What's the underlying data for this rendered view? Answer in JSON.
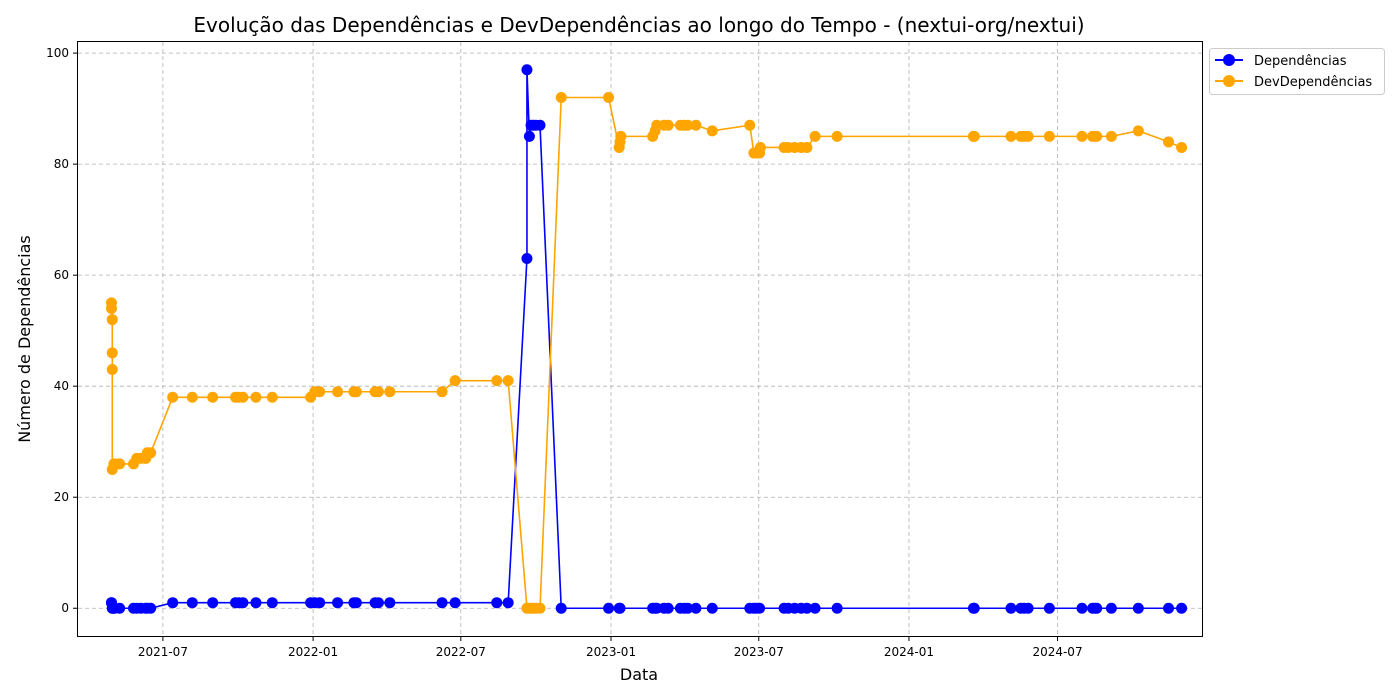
{
  "chart_data": {
    "type": "line",
    "title": "Evolução das Dependências e DevDependências ao longo do Tempo - (nextui-org/nextui)",
    "xlabel": "Data",
    "ylabel": "Número de Dependências",
    "xlim": [
      "2021-03-19",
      "2024-12-25"
    ],
    "ylim": [
      -5,
      102
    ],
    "xticks": [
      {
        "date": "2021-07-01",
        "label": "2021-07"
      },
      {
        "date": "2022-01-01",
        "label": "2022-01"
      },
      {
        "date": "2022-07-01",
        "label": "2022-07"
      },
      {
        "date": "2023-01-01",
        "label": "2023-01"
      },
      {
        "date": "2023-07-01",
        "label": "2023-07"
      },
      {
        "date": "2024-01-01",
        "label": "2024-01"
      },
      {
        "date": "2024-07-01",
        "label": "2024-07"
      }
    ],
    "yticks": [
      0,
      20,
      40,
      60,
      80,
      100
    ],
    "grid": true,
    "legend_position": "outside-top-right",
    "series": [
      {
        "name": "Dependências",
        "color": "#0000ff",
        "marker": "circle",
        "points": [
          [
            "2021-04-29",
            1
          ],
          [
            "2021-04-29",
            1
          ],
          [
            "2021-04-30",
            0
          ],
          [
            "2021-04-30",
            0
          ],
          [
            "2021-05-02",
            0
          ],
          [
            "2021-05-03",
            0
          ],
          [
            "2021-05-09",
            0
          ],
          [
            "2021-05-26",
            0
          ],
          [
            "2021-05-30",
            0
          ],
          [
            "2021-06-04",
            0
          ],
          [
            "2021-06-10",
            0
          ],
          [
            "2021-06-12",
            0
          ],
          [
            "2021-06-16",
            0
          ],
          [
            "2021-07-13",
            1
          ],
          [
            "2021-08-06",
            1
          ],
          [
            "2021-08-31",
            1
          ],
          [
            "2021-09-28",
            1
          ],
          [
            "2021-10-02",
            1
          ],
          [
            "2021-10-07",
            1
          ],
          [
            "2021-10-23",
            1
          ],
          [
            "2021-11-12",
            1
          ],
          [
            "2021-12-29",
            1
          ],
          [
            "2022-01-03",
            1
          ],
          [
            "2022-01-09",
            1
          ],
          [
            "2022-01-31",
            1
          ],
          [
            "2022-02-20",
            1
          ],
          [
            "2022-02-23",
            1
          ],
          [
            "2022-03-18",
            1
          ],
          [
            "2022-03-22",
            1
          ],
          [
            "2022-04-05",
            1
          ],
          [
            "2022-06-08",
            1
          ],
          [
            "2022-06-24",
            1
          ],
          [
            "2022-08-14",
            1
          ],
          [
            "2022-08-28",
            1
          ],
          [
            "2022-09-20",
            63
          ],
          [
            "2022-09-20",
            97
          ],
          [
            "2022-09-23",
            85
          ],
          [
            "2022-09-25",
            87
          ],
          [
            "2022-09-28",
            87
          ],
          [
            "2022-10-01",
            87
          ],
          [
            "2022-10-06",
            87
          ],
          [
            "2022-11-01",
            0
          ],
          [
            "2022-12-29",
            0
          ],
          [
            "2023-01-11",
            0
          ],
          [
            "2023-01-12",
            0
          ],
          [
            "2023-02-21",
            0
          ],
          [
            "2023-02-24",
            0
          ],
          [
            "2023-02-26",
            0
          ],
          [
            "2023-03-07",
            0
          ],
          [
            "2023-03-12",
            0
          ],
          [
            "2023-03-27",
            0
          ],
          [
            "2023-04-01",
            0
          ],
          [
            "2023-04-05",
            0
          ],
          [
            "2023-04-15",
            0
          ],
          [
            "2023-05-05",
            0
          ],
          [
            "2023-06-20",
            0
          ],
          [
            "2023-06-25",
            0
          ],
          [
            "2023-06-28",
            0
          ],
          [
            "2023-07-02",
            0
          ],
          [
            "2023-08-01",
            0
          ],
          [
            "2023-08-06",
            0
          ],
          [
            "2023-08-14",
            0
          ],
          [
            "2023-08-22",
            0
          ],
          [
            "2023-08-29",
            0
          ],
          [
            "2023-09-08",
            0
          ],
          [
            "2023-10-05",
            0
          ],
          [
            "2024-03-20",
            0
          ],
          [
            "2024-03-21",
            0
          ],
          [
            "2024-05-05",
            0
          ],
          [
            "2024-05-17",
            0
          ],
          [
            "2024-05-21",
            0
          ],
          [
            "2024-05-26",
            0
          ],
          [
            "2024-06-21",
            0
          ],
          [
            "2024-07-31",
            0
          ],
          [
            "2024-08-13",
            0
          ],
          [
            "2024-08-16",
            0
          ],
          [
            "2024-08-18",
            0
          ],
          [
            "2024-09-05",
            0
          ],
          [
            "2024-10-08",
            0
          ],
          [
            "2024-11-14",
            0
          ],
          [
            "2024-11-30",
            0
          ]
        ]
      },
      {
        "name": "DevDependências",
        "color": "#ffa500",
        "marker": "circle",
        "points": [
          [
            "2021-04-29",
            55
          ],
          [
            "2021-04-29",
            54
          ],
          [
            "2021-04-30",
            52
          ],
          [
            "2021-04-30",
            43
          ],
          [
            "2021-04-30",
            46
          ],
          [
            "2021-04-30",
            25
          ],
          [
            "2021-05-02",
            26
          ],
          [
            "2021-05-03",
            26
          ],
          [
            "2021-05-09",
            26
          ],
          [
            "2021-05-26",
            26
          ],
          [
            "2021-05-30",
            27
          ],
          [
            "2021-06-04",
            27
          ],
          [
            "2021-06-10",
            27
          ],
          [
            "2021-06-12",
            28
          ],
          [
            "2021-06-16",
            28
          ],
          [
            "2021-07-13",
            38
          ],
          [
            "2021-08-06",
            38
          ],
          [
            "2021-08-31",
            38
          ],
          [
            "2021-09-28",
            38
          ],
          [
            "2021-10-02",
            38
          ],
          [
            "2021-10-07",
            38
          ],
          [
            "2021-10-23",
            38
          ],
          [
            "2021-11-12",
            38
          ],
          [
            "2021-12-29",
            38
          ],
          [
            "2022-01-03",
            39
          ],
          [
            "2022-01-09",
            39
          ],
          [
            "2022-01-31",
            39
          ],
          [
            "2022-02-20",
            39
          ],
          [
            "2022-02-23",
            39
          ],
          [
            "2022-03-18",
            39
          ],
          [
            "2022-03-22",
            39
          ],
          [
            "2022-04-05",
            39
          ],
          [
            "2022-06-08",
            39
          ],
          [
            "2022-06-24",
            41
          ],
          [
            "2022-08-14",
            41
          ],
          [
            "2022-08-28",
            41
          ],
          [
            "2022-09-20",
            0
          ],
          [
            "2022-09-23",
            0
          ],
          [
            "2022-09-25",
            0
          ],
          [
            "2022-09-28",
            0
          ],
          [
            "2022-10-01",
            0
          ],
          [
            "2022-10-06",
            0
          ],
          [
            "2022-11-01",
            92
          ],
          [
            "2022-12-29",
            92
          ],
          [
            "2023-01-11",
            83
          ],
          [
            "2023-01-12",
            84
          ],
          [
            "2023-01-13",
            85
          ],
          [
            "2023-02-21",
            85
          ],
          [
            "2023-02-24",
            86
          ],
          [
            "2023-02-26",
            87
          ],
          [
            "2023-03-07",
            87
          ],
          [
            "2023-03-12",
            87
          ],
          [
            "2023-03-27",
            87
          ],
          [
            "2023-04-01",
            87
          ],
          [
            "2023-04-05",
            87
          ],
          [
            "2023-04-15",
            87
          ],
          [
            "2023-05-05",
            86
          ],
          [
            "2023-06-20",
            87
          ],
          [
            "2023-06-25",
            82
          ],
          [
            "2023-06-28",
            82
          ],
          [
            "2023-07-02",
            82
          ],
          [
            "2023-07-03",
            83
          ],
          [
            "2023-08-01",
            83
          ],
          [
            "2023-08-06",
            83
          ],
          [
            "2023-08-14",
            83
          ],
          [
            "2023-08-22",
            83
          ],
          [
            "2023-08-29",
            83
          ],
          [
            "2023-09-08",
            85
          ],
          [
            "2023-10-05",
            85
          ],
          [
            "2024-03-20",
            85
          ],
          [
            "2024-03-21",
            85
          ],
          [
            "2024-05-05",
            85
          ],
          [
            "2024-05-17",
            85
          ],
          [
            "2024-05-21",
            85
          ],
          [
            "2024-05-26",
            85
          ],
          [
            "2024-06-21",
            85
          ],
          [
            "2024-07-31",
            85
          ],
          [
            "2024-08-13",
            85
          ],
          [
            "2024-08-16",
            85
          ],
          [
            "2024-08-18",
            85
          ],
          [
            "2024-09-05",
            85
          ],
          [
            "2024-10-08",
            86
          ],
          [
            "2024-11-14",
            84
          ],
          [
            "2024-11-30",
            83
          ]
        ]
      }
    ]
  }
}
